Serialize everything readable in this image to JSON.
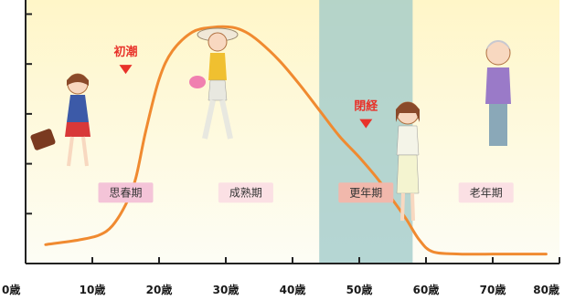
{
  "chart_data": {
    "type": "line",
    "title": "",
    "xlabel": "",
    "ylabel": "",
    "xlim": [
      0,
      80
    ],
    "x_ticks": [
      {
        "value": 0,
        "label": "0歳"
      },
      {
        "value": 10,
        "label": "10歳"
      },
      {
        "value": 20,
        "label": "20歳"
      },
      {
        "value": 30,
        "label": "30歳"
      },
      {
        "value": 40,
        "label": "40歳"
      },
      {
        "value": 50,
        "label": "50歳"
      },
      {
        "value": 60,
        "label": "60歳"
      },
      {
        "value": 70,
        "label": "70歳"
      },
      {
        "value": 80,
        "label": "80歳"
      }
    ],
    "y_tick_count": 5,
    "ylim": [
      0,
      100
    ],
    "series": [
      {
        "color": "#f08a30",
        "x": [
          3,
          8,
          11,
          13,
          15,
          16.5,
          18,
          20,
          22,
          25,
          28,
          31,
          33,
          35,
          38,
          41,
          44,
          47,
          50,
          53,
          55,
          57,
          59,
          61,
          65,
          70,
          75,
          78
        ],
        "y": [
          8,
          10,
          12,
          16,
          25,
          36,
          56,
          78,
          90,
          98,
          100,
          100,
          98,
          94,
          86,
          76,
          65,
          54,
          45,
          35,
          27,
          19,
          10,
          5,
          4,
          4,
          4,
          4
        ]
      }
    ],
    "shaded_band": {
      "x_start": 44,
      "x_end": 58,
      "color": "#9cc8c8"
    },
    "background": {
      "top_color": "#fff6c8",
      "bottom_color": "#fdfdf5"
    },
    "annotations": [
      {
        "text": "初潮",
        "x": 15,
        "y": 88,
        "arrow": true
      },
      {
        "text": "閉経",
        "x": 51,
        "y": 65,
        "arrow": true
      }
    ],
    "stage_labels": [
      {
        "text": "思春期",
        "x": 15,
        "y": 30,
        "bg": "#f4c4d8"
      },
      {
        "text": "成熟期",
        "x": 33,
        "y": 30,
        "bg": "#fbe0e4"
      },
      {
        "text": "更年期",
        "x": 51,
        "y": 30,
        "bg": "#f1b8ac"
      },
      {
        "text": "老年期",
        "x": 69,
        "y": 30,
        "bg": "#fbe0e4"
      }
    ]
  }
}
